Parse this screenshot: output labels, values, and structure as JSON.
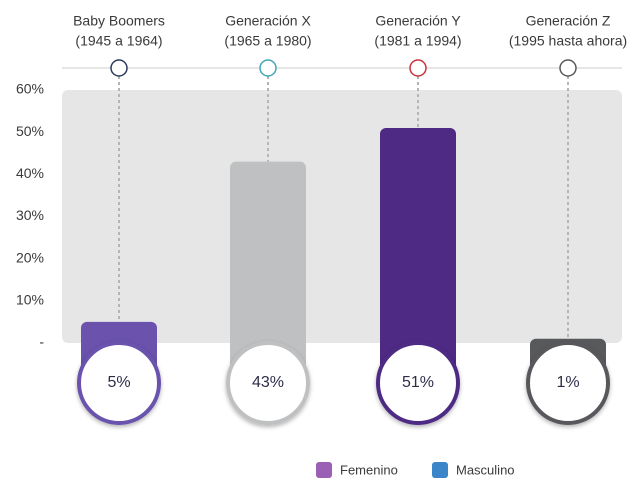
{
  "chart_data": {
    "type": "bar",
    "categories": [
      "Baby Boomers",
      "Generación X",
      "Generación Y",
      "Generación Z"
    ],
    "category_years": [
      "(1945 a 1964)",
      "(1965 a 1980)",
      "(1981 a 1994)",
      "(1995 hasta ahora)"
    ],
    "values": [
      5,
      43,
      51,
      1
    ],
    "value_labels": [
      "5%",
      "43%",
      "51%",
      "1%"
    ],
    "colors": [
      "#6a52ad",
      "#bfc0c2",
      "#4e2a84",
      "#58595b"
    ],
    "marker_colors": [
      "#2d3a5c",
      "#3fa7b5",
      "#c8333b",
      "#58595b"
    ],
    "ylim": [
      0,
      60
    ],
    "yticks": [
      {
        "value": 0,
        "label": "-"
      },
      {
        "value": 10,
        "label": "10%"
      },
      {
        "value": 20,
        "label": "20%"
      },
      {
        "value": 30,
        "label": "30%"
      },
      {
        "value": 40,
        "label": "40%"
      },
      {
        "value": 50,
        "label": "50%"
      },
      {
        "value": 60,
        "label": "60%"
      }
    ],
    "legend": [
      {
        "name": "Femenino",
        "color": "#9b5fb5"
      },
      {
        "name": "Masculino",
        "color": "#3a86c8"
      }
    ]
  }
}
